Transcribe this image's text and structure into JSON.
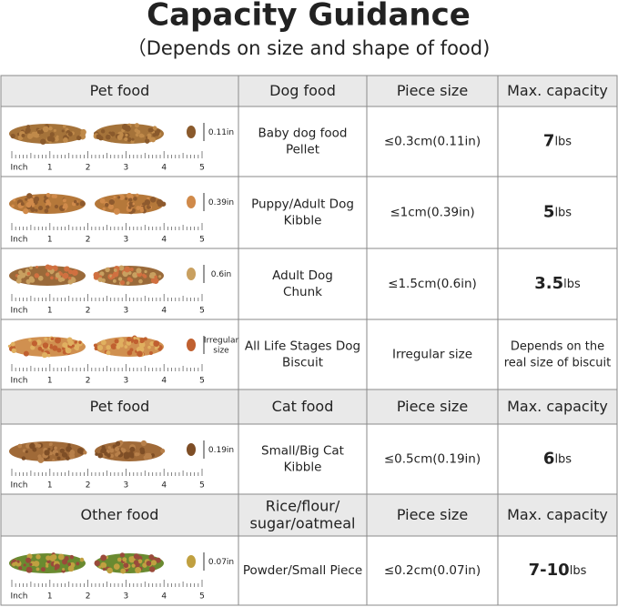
{
  "header": {
    "title": "Capacity Guidance",
    "subtitle": "（Depends on size and shape of food)"
  },
  "ruler": [
    "Inch",
    "1",
    "2",
    "3",
    "4",
    "5"
  ],
  "sections": [
    {
      "columns": [
        [
          "Pet food"
        ],
        [
          "Dog food"
        ],
        [
          "Piece size"
        ],
        [
          "Max. capacity"
        ]
      ],
      "rows": [
        {
          "size_mark": [
            "0.11in"
          ],
          "food": [
            "Baby dog food",
            "Pellet"
          ],
          "piece_size": "≤0.3cm(0.11in)",
          "capacity": [
            "7",
            "lbs"
          ]
        },
        {
          "size_mark": [
            "0.39in"
          ],
          "food": [
            "Puppy/Adult Dog",
            "Kibble"
          ],
          "piece_size": "≤1cm(0.39in)",
          "capacity": [
            "5",
            "lbs"
          ]
        },
        {
          "size_mark": [
            "0.6in"
          ],
          "food": [
            "Adult Dog",
            "Chunk"
          ],
          "piece_size": "≤1.5cm(0.6in)",
          "capacity": [
            "3.5",
            "lbs"
          ]
        },
        {
          "size_mark": [
            "Irregular",
            "size"
          ],
          "food": [
            "All Life Stages Dog",
            "Biscuit"
          ],
          "piece_size": "Irregular size",
          "capacity_text": [
            "Depends on the",
            "real size of biscuit"
          ]
        }
      ]
    },
    {
      "columns": [
        [
          "Pet food"
        ],
        [
          "Cat food"
        ],
        [
          "Piece size"
        ],
        [
          "Max. capacity"
        ]
      ],
      "rows": [
        {
          "size_mark": [
            "0.19in"
          ],
          "food": [
            "Small/Big Cat",
            "Kibble"
          ],
          "piece_size": "≤0.5cm(0.19in)",
          "capacity": [
            "6",
            "lbs"
          ]
        }
      ]
    },
    {
      "columns": [
        [
          "Other food"
        ],
        [
          "Rice/flour/",
          "sugar/oatmeal"
        ],
        [
          "Piece size"
        ],
        [
          "Max. capacity"
        ]
      ],
      "rows": [
        {
          "size_mark": [
            "0.07in"
          ],
          "food": [
            "Powder/Small Piece"
          ],
          "piece_size": "≤0.2cm(0.07in)",
          "capacity": [
            "7-10",
            "lbs"
          ]
        }
      ]
    }
  ]
}
